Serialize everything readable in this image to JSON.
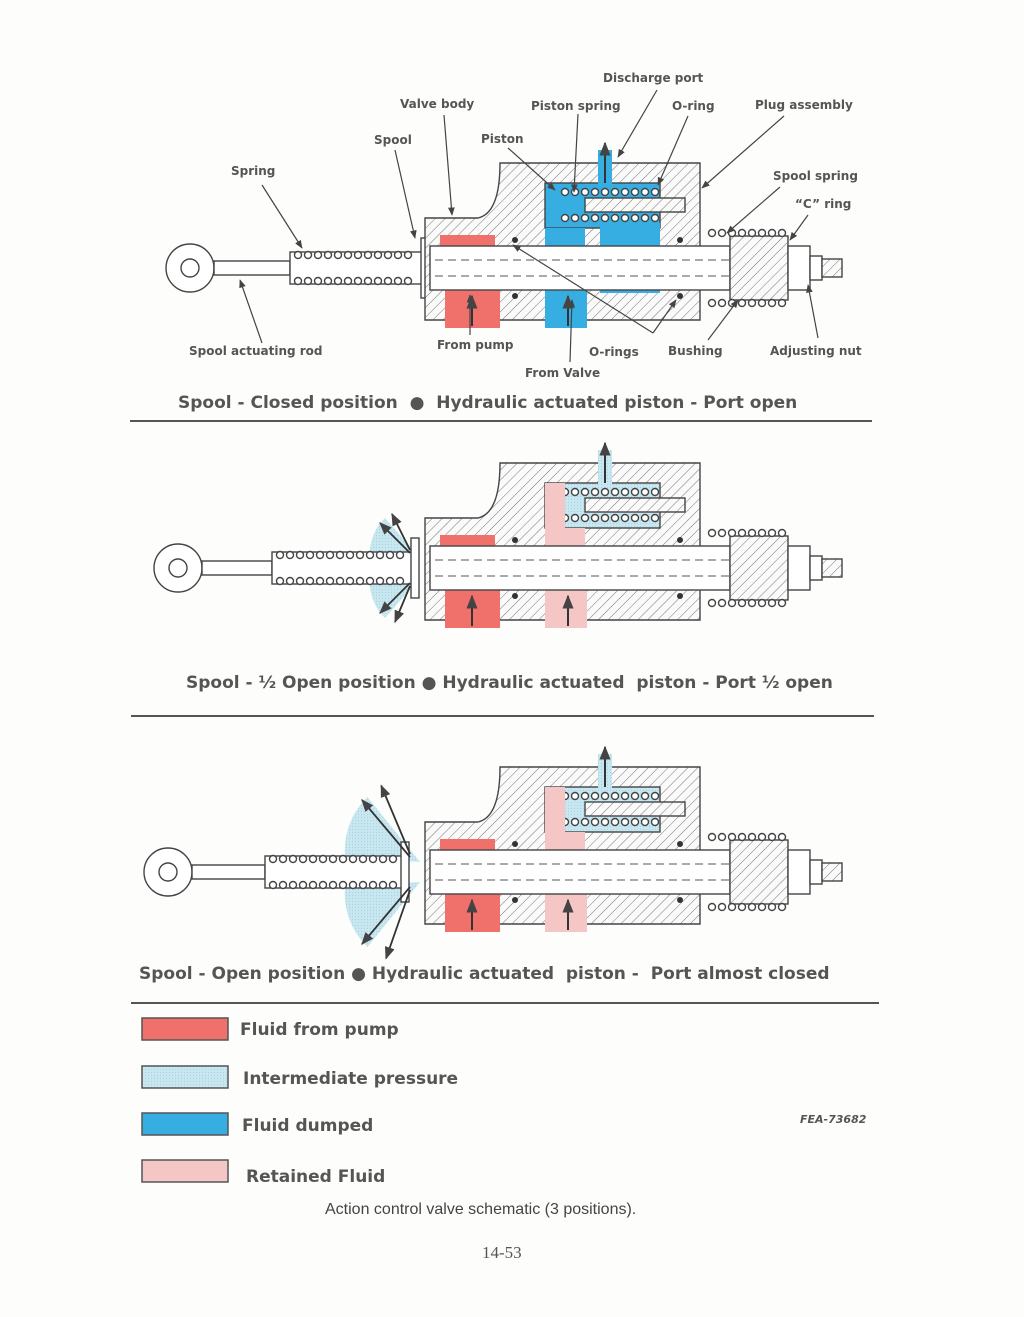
{
  "colors": {
    "fluid_from_pump": "#f0706c",
    "intermediate_pressure": "#c8e7f0",
    "fluid_dumped": "#36aee2",
    "retained_fluid": "#f4c7c6",
    "line": "#555555"
  },
  "diagram1": {
    "labels": {
      "discharge_port": "Discharge port",
      "valve_body": "Valve body",
      "piston_spring": "Piston spring",
      "o_ring": "O-ring",
      "plug_assembly": "Plug assembly",
      "spool": "Spool",
      "piston": "Piston",
      "spring": "Spring",
      "spool_spring": "Spool spring",
      "c_ring": "“C” ring",
      "spool_actuating_rod": "Spool actuating rod",
      "from_pump": "From pump",
      "o_rings": "O-rings",
      "bushing": "Bushing",
      "adjusting_nut": "Adjusting nut",
      "from_valve": "From Valve"
    },
    "caption": "Spool - Closed position  ●  Hydraulic actuated piston - Port open"
  },
  "diagram2": {
    "caption": "Spool - ½ Open position ● Hydraulic actuated  piston - Port ½ open"
  },
  "diagram3": {
    "caption": "Spool - Open position ● Hydraulic actuated  piston -  Port almost closed"
  },
  "legend": [
    {
      "label": "Fluid from pump",
      "color": "#f0706c"
    },
    {
      "label": "Intermediate pressure",
      "color": "#c8e7f0"
    },
    {
      "label": "Fluid dumped",
      "color": "#36aee2"
    },
    {
      "label": "Retained Fluid",
      "color": "#f4c7c6"
    }
  ],
  "figure_code": "FEA-73682",
  "figure_caption": "Action control valve schematic (3 positions).",
  "page_number": "14-53"
}
